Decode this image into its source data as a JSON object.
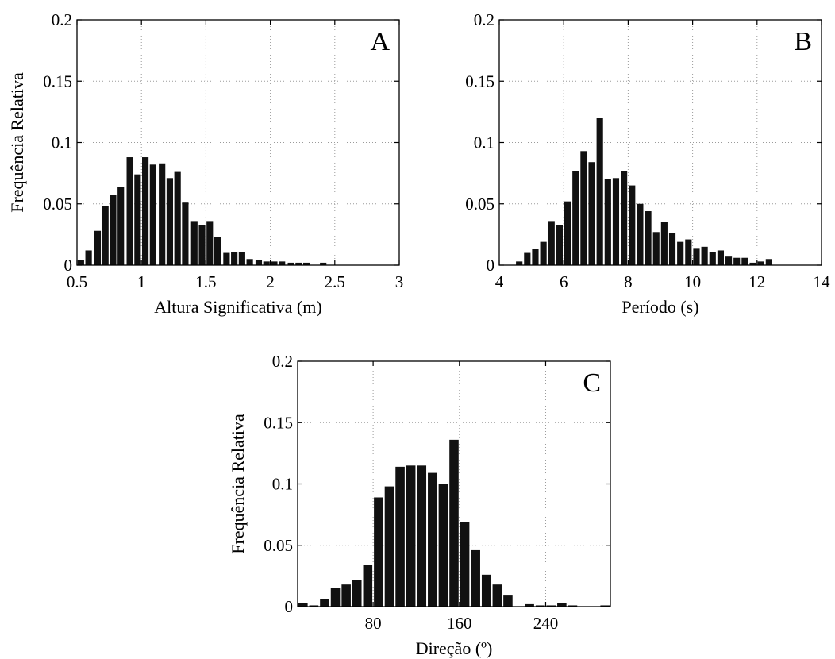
{
  "chart_data": [
    {
      "id": "A",
      "type": "bar",
      "panel_label": "A",
      "xlabel": "Altura Significativa (m)",
      "ylabel": "Frequência Relativa",
      "xlim": [
        0.5,
        3
      ],
      "ylim": [
        0,
        0.2
      ],
      "xticks": [
        0.5,
        1,
        1.5,
        2,
        2.5,
        3
      ],
      "xtick_labels": [
        "0.5",
        "1",
        "1.5",
        "2",
        "2.5",
        "3"
      ],
      "yticks": [
        0,
        0.05,
        0.1,
        0.15,
        0.2
      ],
      "ytick_labels": [
        "0",
        "0.05",
        "0.1",
        "0.15",
        "0.2"
      ],
      "grid": true,
      "bar_color": "#111111",
      "bin_width": 0.0625,
      "x": [
        0.53,
        0.59,
        0.66,
        0.72,
        0.78,
        0.84,
        0.91,
        0.97,
        1.03,
        1.09,
        1.16,
        1.22,
        1.28,
        1.34,
        1.41,
        1.47,
        1.53,
        1.59,
        1.66,
        1.72,
        1.78,
        1.84,
        1.91,
        1.97,
        2.03,
        2.09,
        2.16,
        2.22,
        2.28,
        2.34,
        2.41,
        2.47,
        2.53,
        2.59,
        2.66,
        2.72,
        2.78,
        2.84
      ],
      "values": [
        0.004,
        0.012,
        0.028,
        0.048,
        0.057,
        0.064,
        0.088,
        0.074,
        0.088,
        0.082,
        0.083,
        0.071,
        0.076,
        0.051,
        0.036,
        0.033,
        0.036,
        0.023,
        0.01,
        0.011,
        0.011,
        0.005,
        0.004,
        0.003,
        0.003,
        0.003,
        0.002,
        0.002,
        0.002,
        0.0,
        0.002,
        0.0,
        0.0,
        0.0,
        0.0,
        0.0,
        0.0,
        0.0
      ]
    },
    {
      "id": "B",
      "type": "bar",
      "panel_label": "B",
      "xlabel": "Período (s)",
      "ylabel": "",
      "xlim": [
        4,
        14
      ],
      "ylim": [
        0,
        0.2
      ],
      "xticks": [
        4,
        6,
        8,
        10,
        12,
        14
      ],
      "xtick_labels": [
        "4",
        "6",
        "8",
        "10",
        "12",
        "14"
      ],
      "yticks": [
        0,
        0.05,
        0.1,
        0.15,
        0.2
      ],
      "ytick_labels": [
        "0",
        "0.05",
        "0.1",
        "0.15",
        "0.2"
      ],
      "grid": true,
      "bar_color": "#111111",
      "bin_width": 0.25,
      "x": [
        4.62,
        4.87,
        5.12,
        5.37,
        5.62,
        5.87,
        6.12,
        6.37,
        6.62,
        6.87,
        7.12,
        7.37,
        7.62,
        7.87,
        8.12,
        8.37,
        8.62,
        8.87,
        9.12,
        9.37,
        9.62,
        9.87,
        10.12,
        10.37,
        10.62,
        10.87,
        11.12,
        11.37,
        11.62,
        11.87,
        12.12,
        12.37,
        12.62
      ],
      "values": [
        0.003,
        0.01,
        0.013,
        0.019,
        0.036,
        0.033,
        0.052,
        0.077,
        0.093,
        0.084,
        0.12,
        0.07,
        0.071,
        0.077,
        0.065,
        0.05,
        0.044,
        0.027,
        0.035,
        0.026,
        0.019,
        0.021,
        0.014,
        0.015,
        0.011,
        0.012,
        0.007,
        0.006,
        0.006,
        0.002,
        0.003,
        0.005,
        0.0
      ]
    },
    {
      "id": "C",
      "type": "bar",
      "panel_label": "C",
      "xlabel": "Direção (º)",
      "ylabel": "Frequência Relativa",
      "xlim": [
        10,
        300
      ],
      "ylim": [
        0,
        0.2
      ],
      "xticks": [
        80,
        160,
        240
      ],
      "xtick_labels": [
        "80",
        "160",
        "240"
      ],
      "yticks": [
        0,
        0.05,
        0.1,
        0.15,
        0.2
      ],
      "ytick_labels": [
        "0",
        "0.05",
        "0.1",
        "0.15",
        "0.2"
      ],
      "grid": true,
      "bar_color": "#111111",
      "bin_width": 10,
      "x": [
        15,
        25,
        35,
        45,
        55,
        65,
        75,
        85,
        95,
        105,
        115,
        125,
        135,
        145,
        155,
        165,
        175,
        185,
        195,
        205,
        215,
        225,
        235,
        245,
        255,
        265,
        275,
        285,
        295
      ],
      "values": [
        0.003,
        0.001,
        0.006,
        0.015,
        0.018,
        0.022,
        0.034,
        0.089,
        0.098,
        0.114,
        0.115,
        0.115,
        0.109,
        0.1,
        0.136,
        0.069,
        0.046,
        0.026,
        0.018,
        0.009,
        0.0,
        0.002,
        0.001,
        0.001,
        0.003,
        0.001,
        0.0,
        0.0,
        0.001
      ]
    }
  ]
}
